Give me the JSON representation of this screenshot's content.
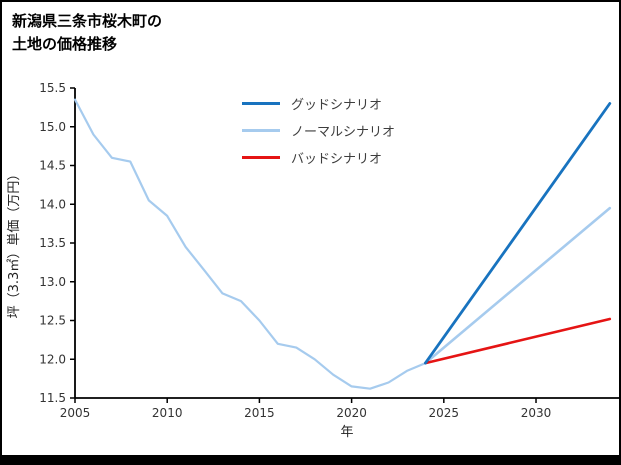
{
  "page": {
    "title_line1": "新潟県三条市桜木町の",
    "title_line2": "土地の価格推移"
  },
  "chart_data": {
    "type": "line",
    "title": "新潟県三条市桜木町の土地の価格推移",
    "xlabel": "年",
    "ylabel": "坪（3.3㎡）単価（万円）",
    "xlim": [
      2005,
      2034.5
    ],
    "ylim": [
      11.5,
      15.5
    ],
    "xticks": [
      2005,
      2010,
      2015,
      2020,
      2025,
      2030
    ],
    "yticks": [
      11.5,
      12.0,
      12.5,
      13.0,
      13.5,
      14.0,
      14.5,
      15.0,
      15.5
    ],
    "grid": false,
    "legend_position": "inside-top-center",
    "colors": {
      "good": "#1873bf",
      "normal": "#a6cbee",
      "bad": "#e51414",
      "axis": "#000000"
    },
    "legend": [
      {
        "label": "グッドシナリオ",
        "color_key": "good"
      },
      {
        "label": "ノーマルシナリオ",
        "color_key": "normal"
      },
      {
        "label": "バッドシナリオ",
        "color_key": "bad"
      }
    ],
    "series": [
      {
        "name": "price-history",
        "color_key": "normal",
        "line_width": 2.2,
        "x": [
          2005,
          2006,
          2007,
          2008,
          2009,
          2010,
          2011,
          2012,
          2013,
          2014,
          2015,
          2016,
          2017,
          2018,
          2019,
          2020,
          2021,
          2022,
          2023,
          2024
        ],
        "y": [
          15.35,
          14.9,
          14.6,
          14.55,
          14.05,
          13.85,
          13.45,
          13.15,
          12.85,
          12.75,
          12.5,
          12.2,
          12.15,
          12.0,
          11.8,
          11.65,
          11.62,
          11.7,
          11.85,
          11.95
        ]
      },
      {
        "name": "ノーマルシナリオ",
        "color_key": "normal",
        "line_width": 2.6,
        "x": [
          2024,
          2034
        ],
        "y": [
          11.95,
          13.95
        ]
      },
      {
        "name": "バッドシナリオ",
        "color_key": "bad",
        "line_width": 2.6,
        "x": [
          2024,
          2034
        ],
        "y": [
          11.95,
          12.52
        ]
      },
      {
        "name": "グッドシナリオ",
        "color_key": "good",
        "line_width": 2.8,
        "x": [
          2024,
          2034
        ],
        "y": [
          11.95,
          15.3
        ]
      }
    ]
  }
}
